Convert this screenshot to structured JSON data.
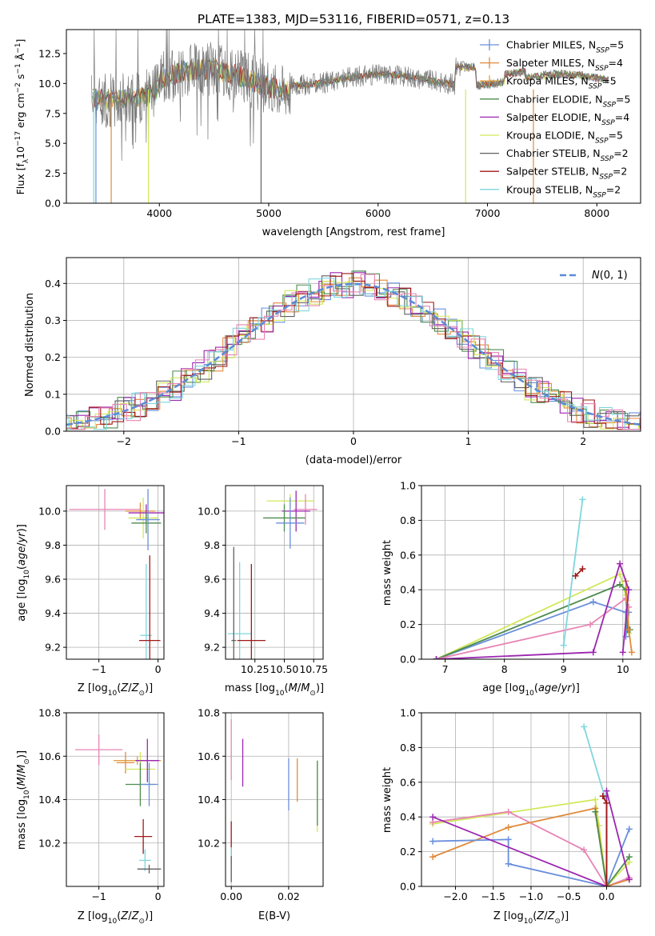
{
  "colors": {
    "Chabrier MILES": "#6a8fdb",
    "Salpeter MILES": "#e08a3c",
    "Kroupa MILES": "#e0a040",
    "Chabrier ELODIE": "#4d8c4d",
    "Salpeter ELODIE": "#9b27b0",
    "Kroupa ELODIE": "#d2e85a",
    "Chabrier STELIB": "#606060",
    "Salpeter STELIB": "#a01818",
    "Kroupa STELIB": "#7fd6de",
    "pink": "#e884b4",
    "normal_line": "#5b8ad6"
  },
  "chart_data": [
    {
      "id": "spectrum",
      "type": "line",
      "title": "PLATE=1383, MJD=53116, FIBERID=0571, z=0.13",
      "xlabel": "wavelength [Angstrom, rest frame]",
      "ylabel": "Flux [fλ10⁻¹⁷ erg cm⁻² s⁻¹ Å⁻¹]",
      "xlim": [
        3150,
        8400
      ],
      "ylim": [
        0,
        14.5
      ],
      "xticks": [
        4000,
        5000,
        6000,
        7000,
        8000
      ],
      "yticks": [
        0.0,
        2.5,
        5.0,
        7.5,
        10.0,
        12.5
      ],
      "legend_position": "right",
      "legend": [
        {
          "name": "Chabrier MILES, N_SSP=5",
          "base": "Chabrier MILES, N",
          "sub": "SSP",
          "tail": "=5",
          "color": "Chabrier MILES"
        },
        {
          "name": "Salpeter MILES, N_SSP=4",
          "base": "Salpeter MILES, N",
          "sub": "SSP",
          "tail": "=4",
          "color": "Salpeter MILES"
        },
        {
          "name": "Kroupa MILES, N_SSP=5",
          "base": "Kroupa MILES, N",
          "sub": "SSP",
          "tail": "=5",
          "color": "Kroupa MILES"
        },
        {
          "name": "Chabrier ELODIE, N_SSP=5",
          "base": "Chabrier ELODIE, N",
          "sub": "SSP",
          "tail": "=5",
          "color": "Chabrier ELODIE"
        },
        {
          "name": "Salpeter ELODIE, N_SSP=4",
          "base": "Salpeter ELODIE, N",
          "sub": "SSP",
          "tail": "=4",
          "color": "Salpeter ELODIE"
        },
        {
          "name": "Kroupa ELODIE, N_SSP=5",
          "base": "Kroupa ELODIE, N",
          "sub": "SSP",
          "tail": "=5",
          "color": "Kroupa ELODIE"
        },
        {
          "name": "Chabrier STELIB, N_SSP=2",
          "base": "Chabrier STELIB, N",
          "sub": "SSP",
          "tail": "=2",
          "color": "Chabrier STELIB"
        },
        {
          "name": "Salpeter STELIB, N_SSP=2",
          "base": "Salpeter STELIB, N",
          "sub": "SSP",
          "tail": "=2",
          "color": "Salpeter STELIB"
        },
        {
          "name": "Kroupa STELIB, N_SSP=2",
          "base": "Kroupa STELIB, N",
          "sub": "SSP",
          "tail": "=2",
          "color": "Kroupa STELIB"
        }
      ],
      "data_x_range": [
        3380,
        8110
      ],
      "data_y_level": 10.3,
      "model_drops": [
        {
          "model": "Kroupa STELIB",
          "x": 3400
        },
        {
          "model": "Chabrier MILES",
          "x": 3420
        },
        {
          "model": "Salpeter MILES",
          "x": 3560
        },
        {
          "model": "Kroupa ELODIE",
          "x": 3900
        },
        {
          "model": "Chabrier STELIB",
          "x": 4930
        },
        {
          "model": "Kroupa ELODIE",
          "x": 6800
        },
        {
          "model": "Salpeter MILES",
          "x": 7420
        }
      ]
    },
    {
      "id": "residuals",
      "type": "histogram",
      "xlabel": "(data-model)/error",
      "ylabel": "Normed distribution",
      "xlim": [
        -2.5,
        2.5
      ],
      "ylim": [
        0,
        0.47
      ],
      "xticks": [
        -2,
        -1,
        0,
        1,
        2
      ],
      "yticks": [
        0.0,
        0.1,
        0.2,
        0.3,
        0.4
      ],
      "legend_position": "top-right",
      "legend": [
        {
          "name": "N(0, 1)",
          "color": "normal_line"
        }
      ],
      "normal_curve": {
        "mean": 0,
        "sigma": 1
      },
      "series_colors": [
        "Chabrier MILES",
        "Salpeter MILES",
        "Chabrier ELODIE",
        "Salpeter ELODIE",
        "Kroupa ELODIE",
        "Chabrier STELIB",
        "Salpeter STELIB",
        "Kroupa STELIB",
        "pink"
      ]
    },
    {
      "id": "age_vs_Z",
      "type": "errorbar",
      "xlabel": "Z [log10(Z/Z⊙)]",
      "ylabel": "age [log10(age/yr)]",
      "xlim": [
        -1.55,
        0.1
      ],
      "ylim": [
        9.13,
        10.15
      ],
      "xticks": [
        -1,
        0
      ],
      "yticks": [
        9.2,
        9.4,
        9.6,
        9.8,
        10.0
      ],
      "points": [
        {
          "x": -0.9,
          "xerr": 0.6,
          "y": 10.01,
          "yerr": 0.12,
          "color": "pink"
        },
        {
          "x": -0.3,
          "xerr": 0.25,
          "y": 10.0,
          "yerr": 0.05,
          "color": "Salpeter MILES"
        },
        {
          "x": -0.25,
          "xerr": 0.25,
          "y": 9.96,
          "yerr": 0.12,
          "color": "Kroupa ELODIE"
        },
        {
          "x": -0.2,
          "xerr": 0.3,
          "y": 9.99,
          "yerr": 0.05,
          "color": "Salpeter ELODIE"
        },
        {
          "x": -0.2,
          "xerr": 0.25,
          "y": 9.93,
          "yerr": 0.06,
          "color": "Chabrier ELODIE"
        },
        {
          "x": -0.17,
          "xerr": 0.2,
          "y": 9.95,
          "yerr": 0.18,
          "color": "Chabrier MILES"
        },
        {
          "x": -0.2,
          "xerr": 0.1,
          "y": 9.27,
          "yerr": 0.42,
          "color": "Kroupa STELIB"
        },
        {
          "x": -0.14,
          "xerr": 0.18,
          "y": 9.24,
          "yerr": 0.5,
          "color": "Salpeter STELIB"
        }
      ]
    },
    {
      "id": "age_vs_mass",
      "type": "errorbar",
      "xlabel": "mass [log10(M/M⊙)]",
      "ylabel": "",
      "xlim": [
        10.0,
        10.83
      ],
      "ylim": [
        9.13,
        10.15
      ],
      "xticks": [
        10.25,
        10.5,
        10.75
      ],
      "yticks": [
        9.2,
        9.4,
        9.6,
        9.8,
        10.0
      ],
      "points": [
        {
          "x": 10.55,
          "xerr": 0.2,
          "y": 10.06,
          "yerr": 0.04,
          "color": "Kroupa ELODIE"
        },
        {
          "x": 10.68,
          "xerr": 0.1,
          "y": 10.01,
          "yerr": 0.09,
          "color": "pink"
        },
        {
          "x": 10.6,
          "xerr": 0.12,
          "y": 10.0,
          "yerr": 0.12,
          "color": "Salpeter ELODIE"
        },
        {
          "x": 10.5,
          "xerr": 0.18,
          "y": 9.96,
          "yerr": 0.08,
          "color": "Chabrier ELODIE"
        },
        {
          "x": 10.55,
          "xerr": 0.12,
          "y": 9.93,
          "yerr": 0.15,
          "color": "Chabrier MILES"
        },
        {
          "x": 10.12,
          "xerr": 0.1,
          "y": 9.28,
          "yerr": 0.42,
          "color": "Kroupa STELIB"
        },
        {
          "x": 10.22,
          "xerr": 0.12,
          "y": 9.24,
          "yerr": 0.45,
          "color": "Salpeter STELIB"
        },
        {
          "x": 10.07,
          "xerr": 0.02,
          "y": 9.24,
          "yerr": 0.55,
          "color": "Chabrier STELIB"
        }
      ]
    },
    {
      "id": "weight_vs_age",
      "type": "line",
      "xlabel": "age (log10(age/yr))",
      "ylabel": "mass weight",
      "xlim": [
        6.6,
        10.3
      ],
      "ylim": [
        0.0,
        1.0
      ],
      "xticks": [
        7,
        8,
        9,
        10
      ],
      "yticks": [
        0.0,
        0.2,
        0.4,
        0.6,
        0.8,
        1.0
      ],
      "series": [
        {
          "color": "Kroupa ELODIE",
          "x": [
            6.85,
            9.95,
            10.05,
            10.08,
            10.1
          ],
          "y": [
            0.0,
            0.49,
            0.37,
            0.34,
            0.15
          ]
        },
        {
          "color": "Chabrier MILES",
          "x": [
            6.85,
            9.5,
            10.05,
            10.05,
            10.1
          ],
          "y": [
            0.0,
            0.33,
            0.27,
            0.13,
            0.27
          ]
        },
        {
          "color": "Chabrier ELODIE",
          "x": [
            6.85,
            9.95,
            10.05,
            10.08,
            10.12
          ],
          "y": [
            0.0,
            0.43,
            0.4,
            0.17,
            0.17
          ]
        },
        {
          "color": "pink",
          "x": [
            6.85,
            9.45,
            10.05,
            10.1
          ],
          "y": [
            0.0,
            0.2,
            0.35,
            0.3
          ]
        },
        {
          "color": "Salpeter MILES",
          "x": [
            10.05,
            10.1,
            10.15
          ],
          "y": [
            0.45,
            0.17,
            0.04
          ]
        },
        {
          "color": "Salpeter ELODIE",
          "x": [
            6.85,
            9.5,
            9.95,
            10.1,
            10.0
          ],
          "y": [
            0.0,
            0.04,
            0.55,
            0.4,
            0.04
          ]
        },
        {
          "color": "Kroupa STELIB",
          "x": [
            9.0,
            9.32
          ],
          "y": [
            0.08,
            0.92
          ]
        },
        {
          "color": "Salpeter STELIB",
          "x": [
            9.2,
            9.32
          ],
          "y": [
            0.48,
            0.52
          ]
        }
      ]
    },
    {
      "id": "mass_vs_Z",
      "type": "errorbar",
      "xlabel": "Z [log10(Z/Z⊙)]",
      "ylabel": "mass [log10(M/M⊙)]",
      "xlim": [
        -1.55,
        0.1
      ],
      "ylim": [
        10.0,
        10.8
      ],
      "xticks": [
        -1,
        0
      ],
      "yticks": [
        10.2,
        10.4,
        10.6,
        10.8
      ],
      "points": [
        {
          "x": -1.0,
          "xerr": 0.4,
          "y": 10.63,
          "yerr": 0.07,
          "color": "pink"
        },
        {
          "x": -0.35,
          "xerr": 0.4,
          "y": 10.58,
          "yerr": 0.02,
          "color": "Kroupa MILES"
        },
        {
          "x": -0.55,
          "xerr": 0.15,
          "y": 10.57,
          "yerr": 0.05,
          "color": "Salpeter MILES"
        },
        {
          "x": -0.3,
          "xerr": 0.25,
          "y": 10.54,
          "yerr": 0.08,
          "color": "Kroupa ELODIE"
        },
        {
          "x": -0.18,
          "xerr": 0.2,
          "y": 10.58,
          "yerr": 0.1,
          "color": "Salpeter ELODIE"
        },
        {
          "x": -0.3,
          "xerr": 0.25,
          "y": 10.47,
          "yerr": 0.1,
          "color": "Chabrier ELODIE"
        },
        {
          "x": -0.15,
          "xerr": 0.15,
          "y": 10.47,
          "yerr": 0.1,
          "color": "Chabrier MILES"
        },
        {
          "x": -0.25,
          "xerr": 0.15,
          "y": 10.23,
          "yerr": 0.08,
          "color": "Salpeter STELIB"
        },
        {
          "x": -0.22,
          "xerr": 0.1,
          "y": 10.12,
          "yerr": 0.05,
          "color": "Kroupa STELIB"
        },
        {
          "x": -0.15,
          "xerr": 0.2,
          "y": 10.08,
          "yerr": 0.02,
          "color": "Chabrier STELIB"
        }
      ]
    },
    {
      "id": "mass_vs_EBV",
      "type": "errorbar",
      "xlabel": "E(B-V)",
      "ylabel": "",
      "xlim": [
        -0.002,
        0.032
      ],
      "ylim": [
        10.0,
        10.8
      ],
      "xticks": [
        0.0,
        0.02
      ],
      "yticks": [
        10.2,
        10.4,
        10.6,
        10.8
      ],
      "points": [
        {
          "x": 0.0,
          "xerr": 0,
          "y": 10.63,
          "yerr": 0.14,
          "color": "pink"
        },
        {
          "x": 0.004,
          "xerr": 0,
          "y": 10.57,
          "yerr": 0.11,
          "color": "Salpeter ELODIE"
        },
        {
          "x": 0.02,
          "xerr": 0,
          "y": 10.47,
          "yerr": 0.12,
          "color": "Chabrier MILES"
        },
        {
          "x": 0.023,
          "xerr": 0,
          "y": 10.49,
          "yerr": 0.1,
          "color": "Salpeter MILES"
        },
        {
          "x": 0.03,
          "xerr": 0,
          "y": 10.41,
          "yerr": 0.16,
          "color": "Kroupa ELODIE"
        },
        {
          "x": 0.03,
          "xerr": 0,
          "y": 10.43,
          "yerr": 0.15,
          "color": "Chabrier ELODIE"
        },
        {
          "x": 0.0,
          "xerr": 0,
          "y": 10.2,
          "yerr": 0.1,
          "color": "Salpeter STELIB"
        },
        {
          "x": 0.0,
          "xerr": 0,
          "y": 10.1,
          "yerr": 0.08,
          "color": "Kroupa STELIB"
        },
        {
          "x": 0.0,
          "xerr": 0,
          "y": 10.08,
          "yerr": 0.06,
          "color": "Chabrier STELIB"
        }
      ]
    },
    {
      "id": "weight_vs_Z",
      "type": "line",
      "xlabel": "Z [log10(Z/Z⊙)]",
      "ylabel": "mass weight",
      "xlim": [
        -2.45,
        0.45
      ],
      "ylim": [
        0.0,
        1.0
      ],
      "xticks": [
        -2.0,
        -1.5,
        -1.0,
        -0.5,
        0.0
      ],
      "yticks": [
        0.0,
        0.2,
        0.4,
        0.6,
        0.8,
        1.0
      ],
      "series": [
        {
          "color": "Kroupa ELODIE",
          "x": [
            -2.3,
            -0.15,
            -0.1,
            0.0,
            0.3
          ],
          "y": [
            0.36,
            0.5,
            0.35,
            0.0,
            0.14
          ]
        },
        {
          "color": "pink",
          "x": [
            -2.3,
            -1.3,
            -0.3,
            0.0,
            0.3
          ],
          "y": [
            0.37,
            0.43,
            0.21,
            0.0,
            0.05
          ]
        },
        {
          "color": "Salpeter MILES",
          "x": [
            -2.3,
            -1.3,
            -0.15,
            0.0,
            0.3
          ],
          "y": [
            0.17,
            0.34,
            0.45,
            0.0,
            0.04
          ]
        },
        {
          "color": "Chabrier MILES",
          "x": [
            -2.3,
            -1.3,
            -1.3,
            0.0,
            0.3
          ],
          "y": [
            0.26,
            0.27,
            0.13,
            0.0,
            0.33
          ]
        },
        {
          "color": "Chabrier ELODIE",
          "x": [
            -0.15,
            0.0,
            0.3
          ],
          "y": [
            0.43,
            0.0,
            0.17
          ]
        },
        {
          "color": "Salpeter ELODIE",
          "x": [
            -2.3,
            0.0,
            0.0,
            0.3
          ],
          "y": [
            0.4,
            0.0,
            0.55,
            0.04
          ]
        },
        {
          "color": "Kroupa STELIB",
          "x": [
            -0.3,
            0.0
          ],
          "y": [
            0.92,
            0.48
          ]
        },
        {
          "color": "Salpeter STELIB",
          "x": [
            -0.05,
            0.0,
            0.0
          ],
          "y": [
            0.52,
            0.48,
            0.0
          ]
        }
      ]
    }
  ]
}
